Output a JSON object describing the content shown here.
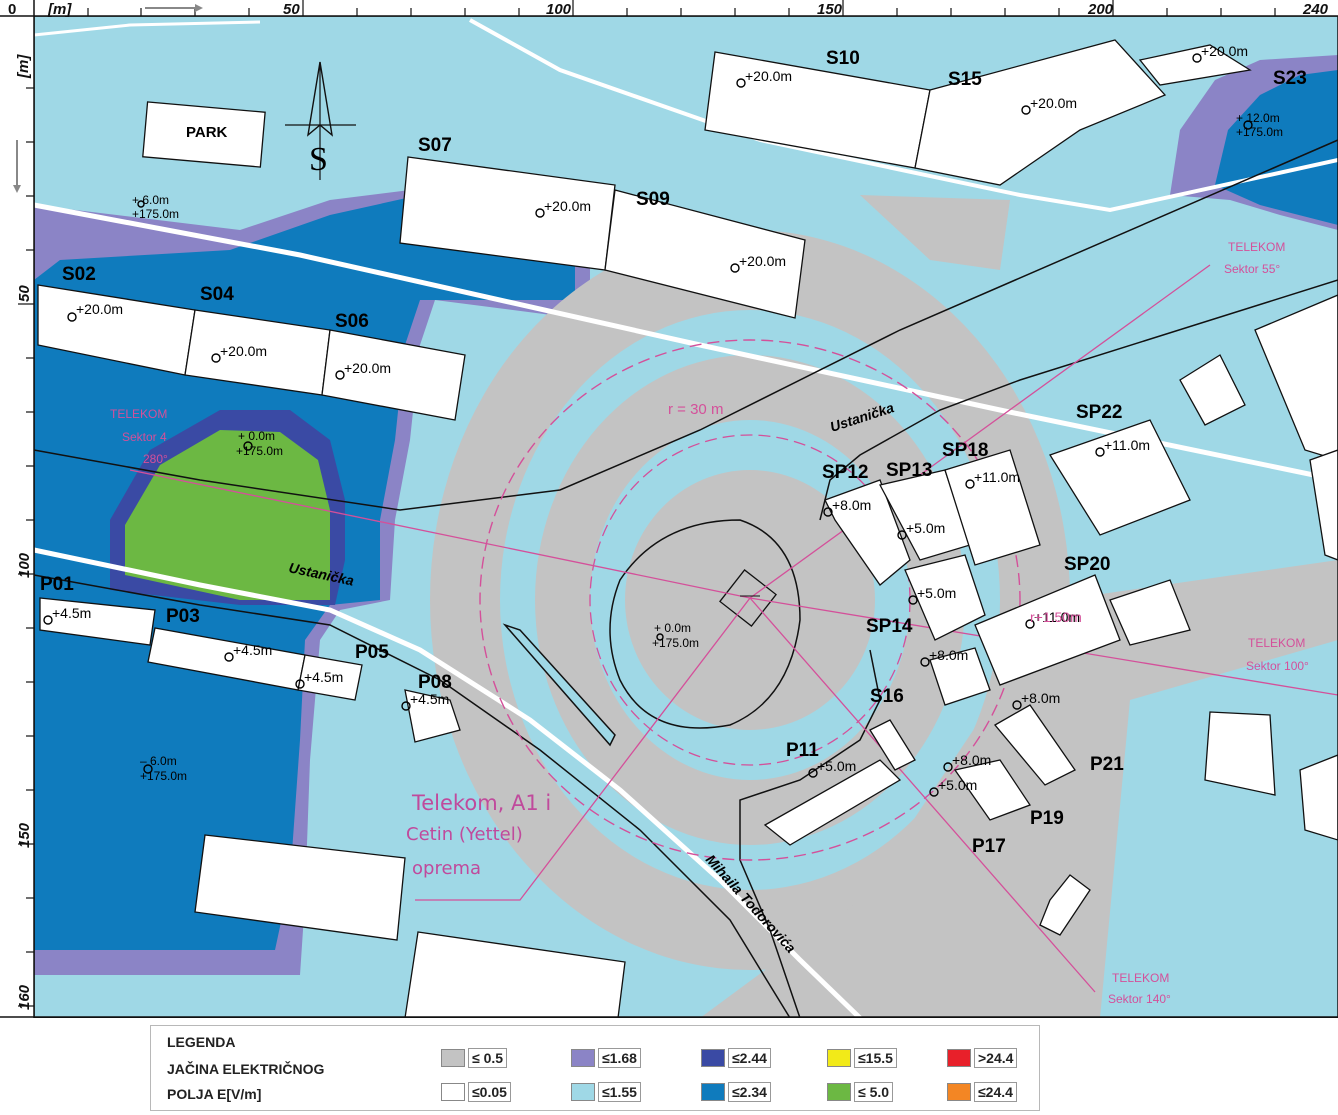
{
  "axis": {
    "x_unit": "[m]",
    "y_unit": "[m]",
    "x_ticks": [
      "0",
      "50",
      "100",
      "150",
      "200",
      "240"
    ],
    "y_ticks": [
      "50",
      "100",
      "150",
      "160"
    ]
  },
  "compass": {
    "label": "S"
  },
  "places": {
    "park": "PARK"
  },
  "buildings": [
    {
      "id": "S02",
      "height": "+20.0m"
    },
    {
      "id": "S04",
      "height": "+20.0m"
    },
    {
      "id": "S06",
      "height": "+20.0m"
    },
    {
      "id": "S07",
      "height": "+20.0m"
    },
    {
      "id": "S09",
      "height": "+20.0m"
    },
    {
      "id": "S10",
      "height": "+20.0m"
    },
    {
      "id": "S15",
      "height": "+20.0m"
    },
    {
      "id": "S23",
      "height": "+20.0m"
    },
    {
      "id": "SP12",
      "height": "+8.0m"
    },
    {
      "id": "SP13",
      "height": "+5.0m"
    },
    {
      "id": "SP18",
      "height": "+11.0m"
    },
    {
      "id": "SP22",
      "height": "+11.0m"
    },
    {
      "id": "SP20",
      "height": "+11.0m"
    },
    {
      "id": "SP14",
      "height": "+5.0m"
    },
    {
      "id": "S16",
      "height": "+8.0m"
    },
    {
      "id": "P01",
      "height": "+4.5m"
    },
    {
      "id": "P03",
      "height": "+4.5m"
    },
    {
      "id": "P05",
      "height": "+4.5m"
    },
    {
      "id": "P08",
      "height": "+4.5m"
    },
    {
      "id": "P11",
      "height": "+5.0m"
    },
    {
      "id": "P17",
      "height": "+5.0m"
    },
    {
      "id": "P19",
      "height": "+8.0m"
    },
    {
      "id": "P21",
      "height": "+8.0m"
    }
  ],
  "points": [
    {
      "a": "+ 6.0m",
      "b": "+175.0m"
    },
    {
      "a": "+ 12.0m",
      "b": "+175.0m"
    },
    {
      "a": "+ 0.0m",
      "b": "+175.0m"
    },
    {
      "a": "+ 0.0m",
      "b": "+175.0m"
    },
    {
      "a": "– 6.0m",
      "b": "+175.0m"
    }
  ],
  "streets": [
    "Ustanička",
    "Ustanička",
    "Mihaila Todorovića"
  ],
  "sectors": [
    {
      "name": "TELEKOM",
      "sector": "Sektor 4",
      "azimuth": "280°"
    },
    {
      "name": "TELEKOM",
      "sector": "Sektor 55°"
    },
    {
      "name": "TELEKOM",
      "sector": "Sektor 100°"
    },
    {
      "name": "TELEKOM",
      "sector": "Sektor 140°"
    }
  ],
  "radius_label": "r = 30 m",
  "equipment_note": [
    "Telekom, A1 i",
    "Cetin (Yettel)",
    "oprema"
  ],
  "extra_label": "r+1.50m",
  "legend": {
    "title": [
      "LEGENDA",
      "JAČINA ELEKTRIČNOG",
      "POLJA E[V/m]"
    ],
    "items": [
      {
        "label": "≤ 0.5",
        "color": "#c3c3c3"
      },
      {
        "label": "≤1.68",
        "color": "#8b84c6"
      },
      {
        "label": "≤2.44",
        "color": "#3a4aa4"
      },
      {
        "label": "≤15.5",
        "color": "#f2ea18"
      },
      {
        "label": ">24.4",
        "color": "#e8202a"
      },
      {
        "label": "≤0.05",
        "color": "#ffffff"
      },
      {
        "label": "≤1.55",
        "color": "#9fd8e6"
      },
      {
        "label": "≤2.34",
        "color": "#0f7bbd"
      },
      {
        "label": "≤ 5.0",
        "color": "#6cb843"
      },
      {
        "label": "≤24.4",
        "color": "#f38624"
      }
    ]
  },
  "colors": {
    "field_low": "#9fd8e6",
    "field_grey": "#c3c3c3",
    "sector_pink": "#d4509a"
  }
}
